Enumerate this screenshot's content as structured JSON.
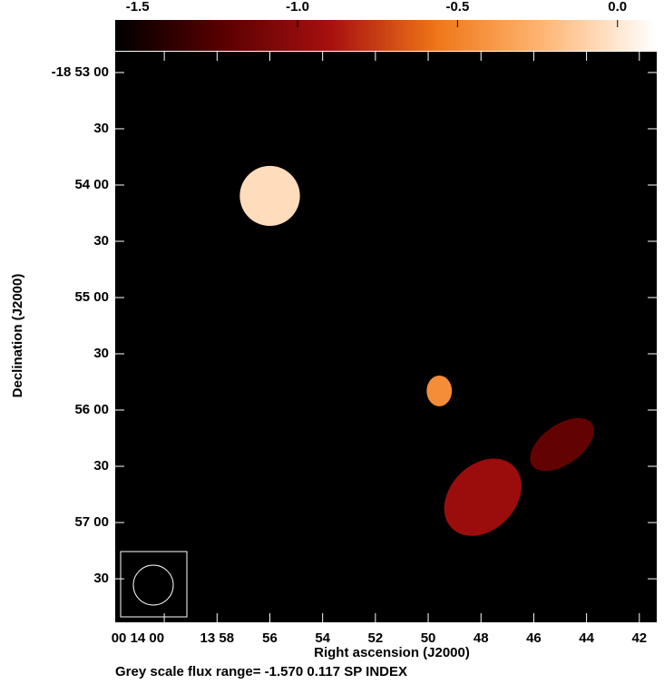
{
  "chart_data": {
    "type": "image",
    "xlabel": "Right ascension (J2000)",
    "ylabel": "Declination (J2000)",
    "footer": "Grey scale flux range= -1.570 0.117 SP INDEX",
    "xlim": [
      61.86,
      41.34
    ],
    "xticks": [
      {
        "value": 60,
        "label": "00 14 00"
      },
      {
        "value": 58,
        "label": "13 58"
      },
      {
        "value": 56,
        "label": "56"
      },
      {
        "value": 54,
        "label": "54"
      },
      {
        "value": 52,
        "label": "52"
      },
      {
        "value": 50,
        "label": "50"
      },
      {
        "value": 48,
        "label": "48"
      },
      {
        "value": 46,
        "label": "46"
      },
      {
        "value": 44,
        "label": "44"
      },
      {
        "value": 42,
        "label": "42"
      }
    ],
    "ylim": [
      293.2,
      -11.1
    ],
    "yticks": [
      {
        "value": 0,
        "label": "-18 53 00"
      },
      {
        "value": 30,
        "label": "30"
      },
      {
        "value": 60,
        "label": "54 00"
      },
      {
        "value": 90,
        "label": "30"
      },
      {
        "value": 120,
        "label": "55 00"
      },
      {
        "value": 150,
        "label": "30"
      },
      {
        "value": 180,
        "label": "56 00"
      },
      {
        "value": 210,
        "label": "30"
      },
      {
        "value": 240,
        "label": "57 00"
      },
      {
        "value": 270,
        "label": "30"
      }
    ],
    "clim": [
      -1.57,
      0.117
    ],
    "cticks": [
      -1.5,
      {
        "value": -1,
        "label": "-1.0"
      },
      -0.5,
      {
        "value": 0,
        "label": "0.0"
      }
    ],
    "colormap": [
      "#000000",
      "#5a0000",
      "#a81010",
      "#f07818",
      "#ffb878",
      "#ffffff"
    ],
    "sources": {
      "x": [
        56.0,
        49.58,
        44.93,
        47.93
      ],
      "y": [
        65.8,
        169.8,
        198.4,
        226.5
      ],
      "rx": [
        1.14,
        0.48,
        1.38,
        1.66
      ],
      "ry": [
        16,
        8.2,
        10.6,
        17.4
      ],
      "angle": [
        0,
        0,
        -35,
        -45
      ],
      "values": [
        -0.05,
        -0.45,
        -1.2,
        -0.95
      ]
    }
  }
}
